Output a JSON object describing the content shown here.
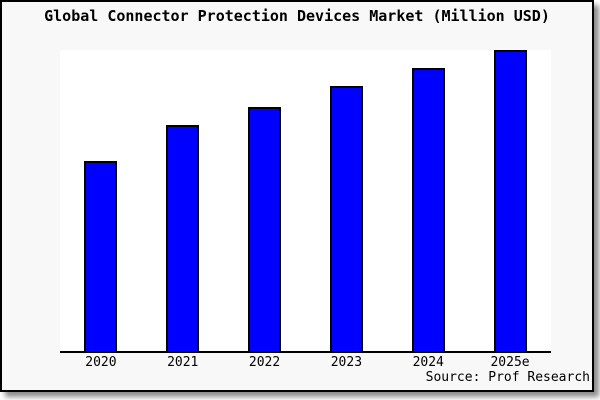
{
  "chart_data": {
    "type": "bar",
    "title": "Global Connector Protection Devices Market (Million USD)",
    "categories": [
      "2020",
      "2021",
      "2022",
      "2023",
      "2024",
      "2025e"
    ],
    "values": [
      63,
      75,
      81,
      88,
      94,
      100
    ],
    "xlabel": "",
    "ylabel": "",
    "ylim": [
      0,
      100
    ],
    "grid": false,
    "legend": null,
    "y_axis_visible": false,
    "bar_color": "#0000ff",
    "bar_border_color": "#000000",
    "source": "Source: Prof Research"
  },
  "colors": {
    "figure_background": "#f8f8f8",
    "plot_background": "#ffffff",
    "frame": "#000000",
    "text": "#000000"
  }
}
